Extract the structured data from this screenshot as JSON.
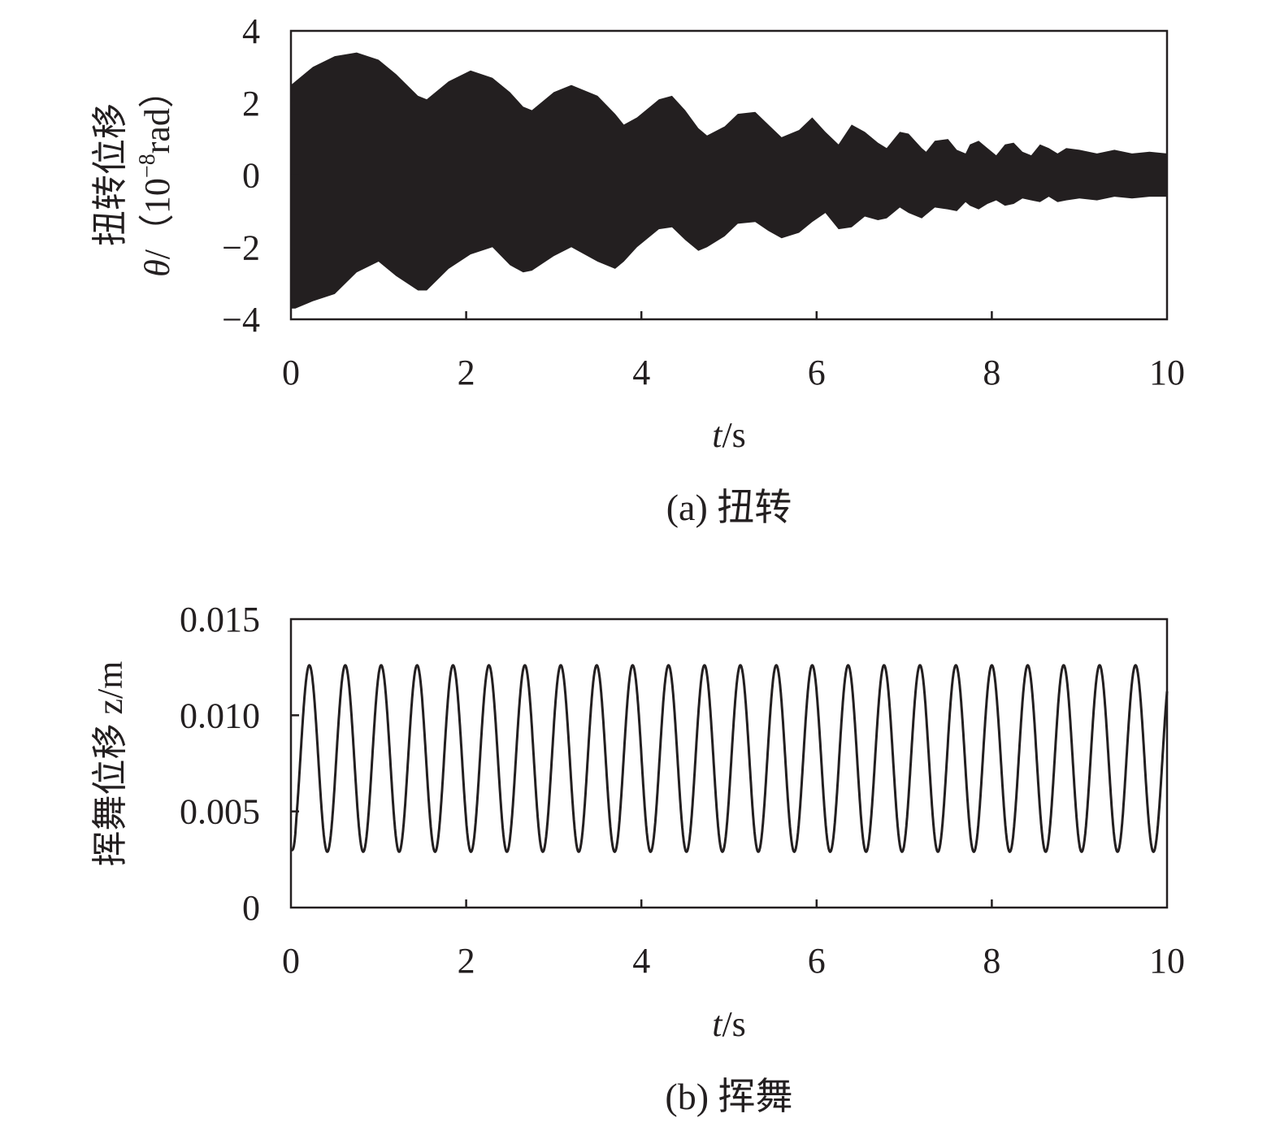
{
  "chart_data": [
    {
      "type": "line",
      "panel": "a",
      "caption": "(a) 扭转",
      "xlabel": {
        "italic": "t",
        "rest": "/s"
      },
      "ylabel": {
        "line1": "扭转位移",
        "line2_symbol": "θ",
        "line2_rest": "/（10",
        "line2_sup": "−8",
        "line2_unit": "rad）"
      },
      "xlim": [
        0,
        10
      ],
      "ylim": [
        -4,
        4
      ],
      "xticks": [
        0,
        2,
        4,
        6,
        8,
        10
      ],
      "xtick_labels": [
        "0",
        "2",
        "4",
        "6",
        "8",
        "10"
      ],
      "yticks": [
        -4,
        -2,
        0,
        2,
        4
      ],
      "ytick_labels": [
        "−4",
        "−2",
        "0",
        "2",
        "4"
      ],
      "grid": false,
      "line_color": "#231f20",
      "series": [
        {
          "envelope_upper": {
            "x": [
              0.0,
              0.05,
              0.25,
              0.5,
              0.75,
              1.0,
              1.2,
              1.45,
              1.55,
              1.8,
              2.05,
              2.3,
              2.5,
              2.65,
              2.75,
              3.0,
              3.2,
              3.5,
              3.7,
              3.8,
              3.95,
              4.2,
              4.35,
              4.5,
              4.65,
              4.75,
              4.95,
              5.1,
              5.3,
              5.45,
              5.6,
              5.8,
              5.95,
              6.1,
              6.25,
              6.4,
              6.55,
              6.7,
              6.8,
              6.9,
              6.95,
              7.05,
              7.2,
              7.25,
              7.35,
              7.5,
              7.6,
              7.7,
              7.75,
              7.85,
              7.95,
              8.05,
              8.15,
              8.25,
              8.35,
              8.45,
              8.55,
              8.65,
              8.75,
              8.85,
              9.0,
              9.2,
              9.4,
              9.6,
              9.8,
              10.0
            ],
            "y": [
              2.5,
              2.6,
              3.0,
              3.3,
              3.4,
              3.2,
              2.8,
              2.2,
              2.1,
              2.6,
              2.9,
              2.7,
              2.3,
              1.9,
              1.8,
              2.3,
              2.5,
              2.2,
              1.7,
              1.4,
              1.6,
              2.1,
              2.2,
              1.8,
              1.3,
              1.1,
              1.35,
              1.7,
              1.75,
              1.4,
              1.05,
              1.25,
              1.6,
              1.2,
              0.85,
              1.4,
              1.2,
              0.9,
              0.75,
              1.05,
              1.2,
              1.15,
              0.75,
              0.65,
              0.95,
              1.0,
              0.7,
              0.6,
              0.85,
              0.95,
              0.75,
              0.55,
              0.85,
              0.9,
              0.65,
              0.55,
              0.85,
              0.75,
              0.6,
              0.75,
              0.7,
              0.6,
              0.7,
              0.6,
              0.65,
              0.6
            ]
          },
          "envelope_lower": {
            "x": [
              0.0,
              0.05,
              0.25,
              0.5,
              0.75,
              1.0,
              1.2,
              1.45,
              1.55,
              1.8,
              2.05,
              2.3,
              2.5,
              2.65,
              2.75,
              3.0,
              3.2,
              3.5,
              3.7,
              3.8,
              3.95,
              4.2,
              4.35,
              4.5,
              4.65,
              4.75,
              4.95,
              5.1,
              5.3,
              5.45,
              5.6,
              5.8,
              5.95,
              6.1,
              6.25,
              6.4,
              6.55,
              6.7,
              6.8,
              6.9,
              6.95,
              7.05,
              7.2,
              7.25,
              7.35,
              7.5,
              7.6,
              7.7,
              7.75,
              7.85,
              7.95,
              8.05,
              8.15,
              8.25,
              8.35,
              8.45,
              8.55,
              8.65,
              8.75,
              8.85,
              9.0,
              9.2,
              9.4,
              9.6,
              9.8,
              10.0
            ],
            "y": [
              -3.7,
              -3.7,
              -3.5,
              -3.3,
              -2.7,
              -2.4,
              -2.8,
              -3.2,
              -3.2,
              -2.6,
              -2.2,
              -2.0,
              -2.5,
              -2.7,
              -2.65,
              -2.25,
              -2.0,
              -2.4,
              -2.6,
              -2.4,
              -2.0,
              -1.5,
              -1.45,
              -1.8,
              -2.1,
              -2.0,
              -1.7,
              -1.35,
              -1.3,
              -1.55,
              -1.75,
              -1.6,
              -1.3,
              -1.05,
              -1.5,
              -1.45,
              -1.15,
              -1.25,
              -1.2,
              -1.0,
              -0.9,
              -1.05,
              -1.2,
              -1.1,
              -0.9,
              -0.95,
              -1.0,
              -0.75,
              -0.85,
              -0.95,
              -0.8,
              -0.7,
              -0.85,
              -0.8,
              -0.65,
              -0.7,
              -0.75,
              -0.6,
              -0.75,
              -0.7,
              -0.65,
              -0.7,
              -0.6,
              -0.65,
              -0.6,
              -0.6
            ]
          }
        }
      ]
    },
    {
      "type": "line",
      "panel": "b",
      "caption": "(b) 挥舞",
      "xlabel": {
        "italic": "t",
        "rest": "/s"
      },
      "ylabel": {
        "line1": "挥舞位移 z/m"
      },
      "xlim": [
        0,
        10
      ],
      "ylim": [
        0,
        0.015
      ],
      "xticks": [
        0,
        2,
        4,
        6,
        8,
        10
      ],
      "xtick_labels": [
        "0",
        "2",
        "4",
        "6",
        "8",
        "10"
      ],
      "yticks": [
        0,
        0.005,
        0.01,
        0.015
      ],
      "ytick_labels": [
        "0",
        "0.005",
        "0.010",
        "0.015"
      ],
      "grid": false,
      "line_color": "#231f20",
      "series": [
        {
          "description_values": {
            "max": 0.0126,
            "min": 0.0029,
            "period_s": 0.41,
            "start_value": 0.003,
            "first_peak_t": 0.21
          }
        }
      ]
    }
  ]
}
